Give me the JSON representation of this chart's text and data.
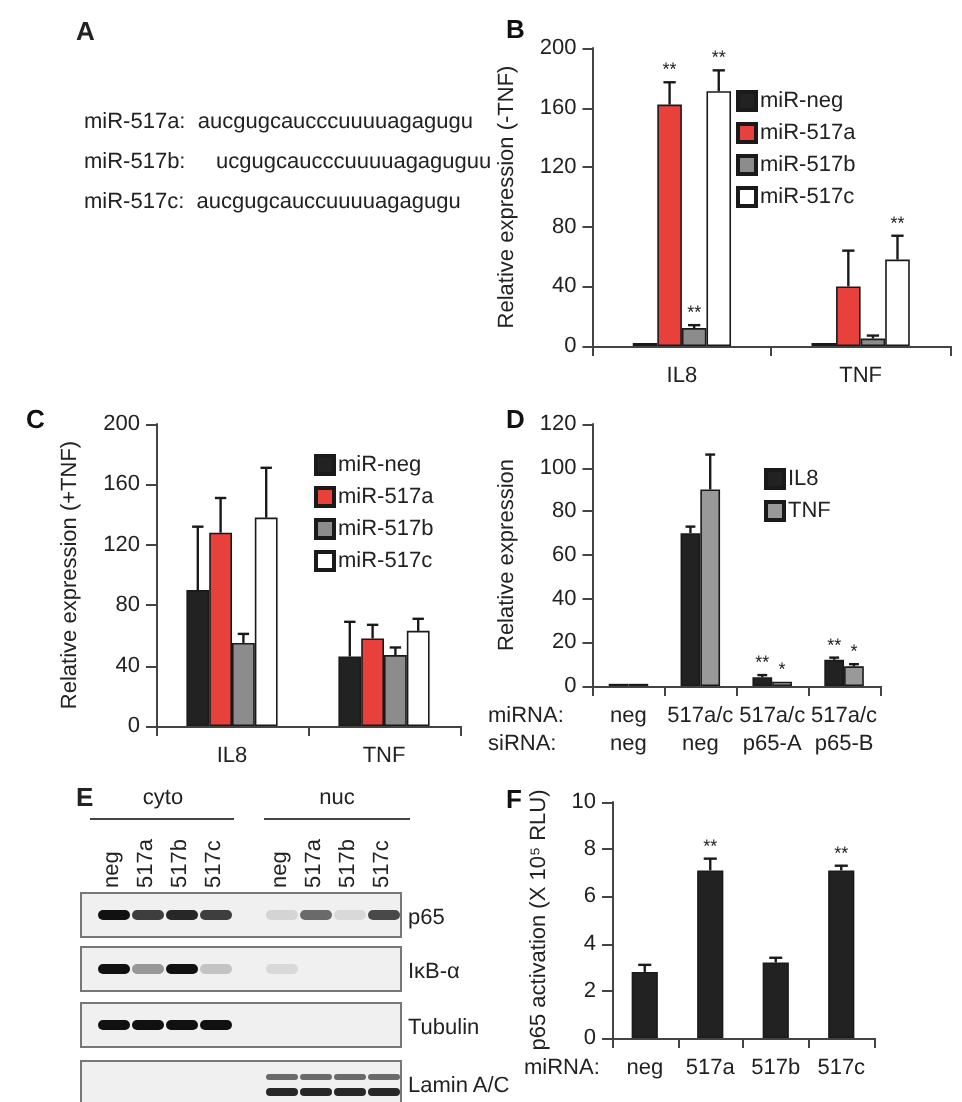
{
  "chart_data": [
    {
      "type": "other",
      "title": "A",
      "annotations": [
        "miR-517a:  aucgugcaucccuuuuagagugu",
        "miR-517b:     ucgugcaucccuuuuagaguguu",
        "miR-517c:  aucgugcauccuuuuagagugu"
      ]
    },
    {
      "type": "bar",
      "title": "B",
      "ylabel": "Relative expression (-TNF)",
      "categories": [
        "IL8",
        "TNF"
      ],
      "ylim": [
        0,
        200
      ],
      "yticks": [
        0,
        40,
        80,
        120,
        160,
        200
      ],
      "legend": "top right",
      "series": [
        {
          "name": "miR-neg",
          "color": "#222222",
          "values": [
            2,
            2
          ]
        },
        {
          "name": "miR-517a",
          "color": "#e8403a",
          "values": [
            162,
            40
          ],
          "errors": [
            [
              162,
              177
            ],
            [
              40,
              64
            ]
          ],
          "value_labels": [
            "**",
            null
          ]
        },
        {
          "name": "miR-517b",
          "color": "#8c8c8c",
          "values": [
            12,
            5
          ],
          "errors": [
            [
              12,
              14
            ],
            [
              5,
              7
            ]
          ],
          "value_labels": [
            "**",
            null
          ]
        },
        {
          "name": "miR-517c",
          "color": "#ffffff",
          "values": [
            171,
            58
          ],
          "errors": [
            [
              171,
              185
            ],
            [
              58,
              74
            ]
          ],
          "value_labels": [
            "**",
            "**"
          ]
        }
      ]
    },
    {
      "type": "bar",
      "title": "C",
      "ylabel": "Relative expression (+TNF)",
      "categories": [
        "IL8",
        "TNF"
      ],
      "ylim": [
        0,
        200
      ],
      "yticks": [
        0,
        40,
        80,
        120,
        160,
        200
      ],
      "legend": "top right",
      "series": [
        {
          "name": "miR-neg",
          "color": "#222222",
          "values": [
            90,
            46
          ],
          "errors": [
            [
              90,
              132
            ],
            [
              46,
              69
            ]
          ]
        },
        {
          "name": "miR-517a",
          "color": "#e8403a",
          "values": [
            128,
            58
          ],
          "errors": [
            [
              128,
              151
            ],
            [
              58,
              67
            ]
          ]
        },
        {
          "name": "miR-517b",
          "color": "#8c8c8c",
          "values": [
            55,
            47
          ],
          "errors": [
            [
              55,
              61
            ],
            [
              47,
              52
            ]
          ]
        },
        {
          "name": "miR-517c",
          "color": "#ffffff",
          "values": [
            138,
            63
          ],
          "errors": [
            [
              138,
              171
            ],
            [
              63,
              71
            ]
          ]
        }
      ]
    },
    {
      "type": "bar",
      "title": "D",
      "ylabel": "Relative expression",
      "categories": [
        "neg\nneg",
        "517a/c\nneg",
        "517a/c\np65-A",
        "517a/c\np65-B"
      ],
      "ylim": [
        0,
        120
      ],
      "yticks": [
        0,
        20,
        40,
        60,
        80,
        100,
        120
      ],
      "legend": "top right",
      "annotations": [
        "miRNA:\nsiRNA:"
      ],
      "series": [
        {
          "name": "IL8",
          "color": "#222222",
          "values": [
            1,
            70,
            4,
            12
          ],
          "errors": [
            null,
            [
              70,
              73
            ],
            [
              4,
              5
            ],
            [
              12,
              13
            ]
          ],
          "value_labels": [
            null,
            null,
            "**",
            "**"
          ]
        },
        {
          "name": "TNF",
          "color": "#999999",
          "values": [
            1,
            90,
            2,
            9
          ],
          "errors": [
            null,
            [
              90,
              106
            ],
            null,
            [
              9,
              10
            ]
          ],
          "value_labels": [
            null,
            null,
            "*",
            "*"
          ]
        }
      ]
    },
    {
      "type": "other",
      "title": "E",
      "annotations": [
        "cyto",
        "nuc",
        "neg",
        "517a",
        "517b",
        "517c",
        "neg",
        "517a",
        "517b",
        "517c",
        "p65",
        "IκB-α",
        "Tubulin",
        "Lamin A/C"
      ]
    },
    {
      "type": "bar",
      "title": "F",
      "ylabel": "p65 activation (X 10⁵ RLU)",
      "categories": [
        "neg",
        "517a",
        "517b",
        "517c"
      ],
      "ylim": [
        0,
        10
      ],
      "yticks": [
        0,
        2,
        4,
        6,
        8,
        10
      ],
      "annotations": [
        "miRNA:"
      ],
      "color": "#222222",
      "values": [
        2.8,
        7.1,
        3.2,
        7.1
      ],
      "errors": [
        [
          2.8,
          3.1
        ],
        [
          7.1,
          7.6
        ],
        [
          3.2,
          3.4
        ],
        [
          7.1,
          7.3
        ]
      ],
      "value_labels": [
        null,
        "**",
        null,
        "**"
      ]
    }
  ]
}
